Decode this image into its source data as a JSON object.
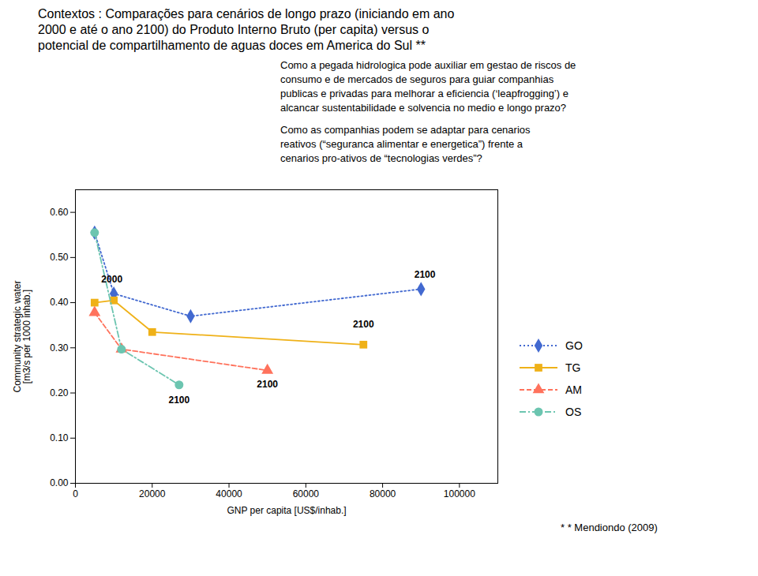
{
  "chart_data": {
    "type": "line",
    "title": "Contextos : Comparações para cenários de longo prazo (iniciando em ano\n2000 e até o ano 2100) do Produto Interno Bruto (per capita) versus o\npotencial de compartilhamento de aguas doces em America do Sul **",
    "annotations": [
      "Como a pegada hidrologica pode auxiliar em gestao de riscos de\nconsumo e de mercados de seguros para guiar companhias\npublicas e privadas para melhorar a eficiencia (‘leapfrogging’) e\nalcancar sustentabilidade e solvencia no medio e longo prazo?",
      "Como as companhias podem se adaptar para cenarios\nreativos (“seguranca alimentar e energetica”) frente a\ncenarios pro-ativos de “tecnologias verdes”?",
      {
        "text": "2000",
        "x": 9500,
        "y": 0.445
      },
      {
        "text": "2100",
        "x": 27000,
        "y": 0.192
      },
      {
        "text": "2100",
        "x": 50000,
        "y": 0.228
      },
      {
        "text": "2100",
        "x": 75000,
        "y": 0.345
      },
      {
        "text": "2100",
        "x": 91000,
        "y": 0.455
      }
    ],
    "caption": "* * Mendiondo (2009)",
    "xlabel": "GNP per capita [US$/inhab.]",
    "ylabel": "Community strategic water\n[m3/s per 1000 inhab.]",
    "xlim": [
      0,
      110000
    ],
    "ylim": [
      0.0,
      0.65
    ],
    "xticks": [
      0,
      20000,
      40000,
      60000,
      80000,
      100000
    ],
    "yticks": [
      {
        "value": 0.0,
        "label": "0.00"
      },
      {
        "value": 0.1,
        "label": "0.10"
      },
      {
        "value": 0.2,
        "label": "0.20"
      },
      {
        "value": 0.3,
        "label": "0.30"
      },
      {
        "value": 0.4,
        "label": "0.40"
      },
      {
        "value": 0.5,
        "label": "0.50"
      },
      {
        "value": 0.6,
        "label": "0.60"
      }
    ],
    "grid": false,
    "legend": "right",
    "series": [
      {
        "name": "GO",
        "x": [
          5000,
          10000,
          30000,
          90000
        ],
        "values": [
          0.555,
          0.42,
          0.37,
          0.43
        ],
        "marker": "diamond",
        "line_style": "dotted"
      },
      {
        "name": "TG",
        "x": [
          5000,
          10000,
          20000,
          75000
        ],
        "values": [
          0.4,
          0.405,
          0.335,
          0.307
        ],
        "marker": "square",
        "line_style": "solid"
      },
      {
        "name": "AM",
        "x": [
          5000,
          12000,
          50000
        ],
        "values": [
          0.378,
          0.297,
          0.25
        ],
        "marker": "triangle",
        "line_style": "dashed"
      },
      {
        "name": "OS",
        "x": [
          5000,
          12000,
          27000
        ],
        "values": [
          0.555,
          0.297,
          0.218
        ],
        "marker": "circle",
        "line_style": "dashdot"
      }
    ]
  }
}
